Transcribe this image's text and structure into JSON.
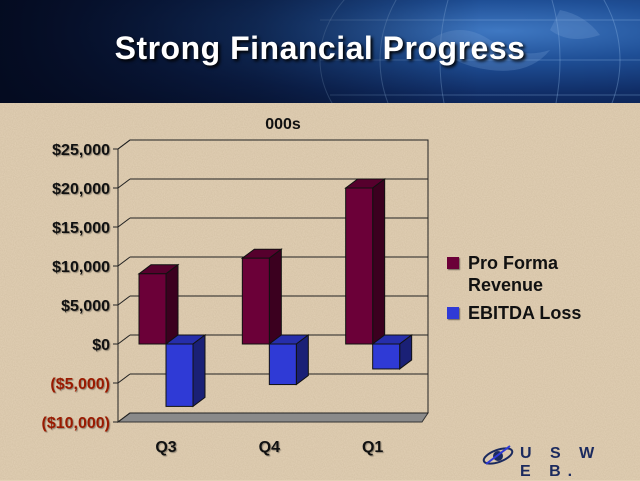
{
  "slide": {
    "title": "Strong Financial Progress",
    "logo_text": "U S W E B."
  },
  "colors": {
    "background": "#e3d1b6",
    "revenue": "#6b0038",
    "ebitda": "#2f3ad6",
    "negative_tick": "#9a1a00",
    "positive_tick": "#111111"
  },
  "chart_data": {
    "type": "bar",
    "unit_label": "000s",
    "categories": [
      "Q3",
      "Q4",
      "Q1"
    ],
    "series": [
      {
        "name": "Pro Forma\nRevenue",
        "values": [
          9000,
          11000,
          20000
        ],
        "color": "#6b0038"
      },
      {
        "name": "EBITDA Loss",
        "values": [
          -8000,
          -5200,
          -3200
        ],
        "color": "#2f3ad6"
      }
    ],
    "yticks": [
      "$25,000",
      "$20,000",
      "$15,000",
      "$10,000",
      "$5,000",
      "$0",
      "($5,000)",
      "($10,000)"
    ],
    "ytick_values": [
      25000,
      20000,
      15000,
      10000,
      5000,
      0,
      -5000,
      -10000
    ],
    "ylim": [
      -10000,
      25000
    ],
    "grid": true,
    "legend_position": "right",
    "style": "3d"
  }
}
